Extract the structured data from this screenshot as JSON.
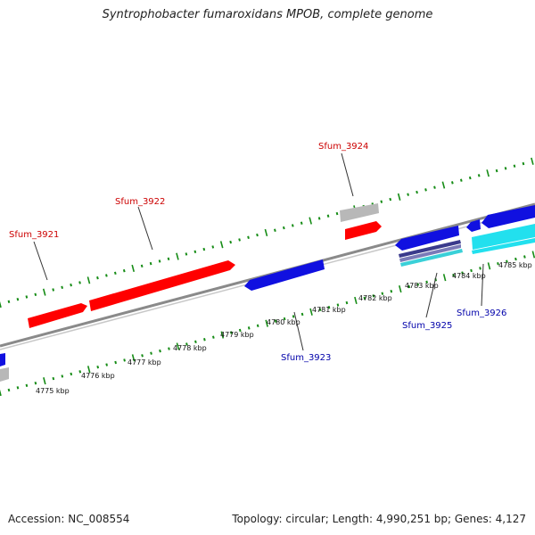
{
  "title": "Syntrophobacter fumaroxidans MPOB, complete genome",
  "footer": {
    "accession": "Accession: NC_008554",
    "summary": "Topology: circular; Length: 4,990,251 bp; Genes: 4,127"
  },
  "colors": {
    "forward_gene": "#ff0000",
    "reverse_gene": "#1010e0",
    "cyan_gene": "#22e0ee",
    "gray_gene": "#b8b8b8",
    "backbone": "#8a8a8a",
    "ticks": "#168c16",
    "forward_label": "#cc0000",
    "reverse_label": "#0000aa",
    "scale_label": "#111111"
  },
  "scale_labels": [
    "4775 kbp",
    "4776 kbp",
    "4777 kbp",
    "4778 kbp",
    "4779 kbp",
    "4780 kbp",
    "4781 kbp",
    "4782 kbp",
    "4783 kbp",
    "4784 kbp",
    "4785 kbp"
  ],
  "gene_labels": {
    "sfum_3921": "Sfum_3921",
    "sfum_3922": "Sfum_3922",
    "sfum_3924": "Sfum_3924",
    "sfum_3923": "Sfum_3923",
    "sfum_3925": "Sfum_3925",
    "sfum_3926": "Sfum_3926"
  }
}
